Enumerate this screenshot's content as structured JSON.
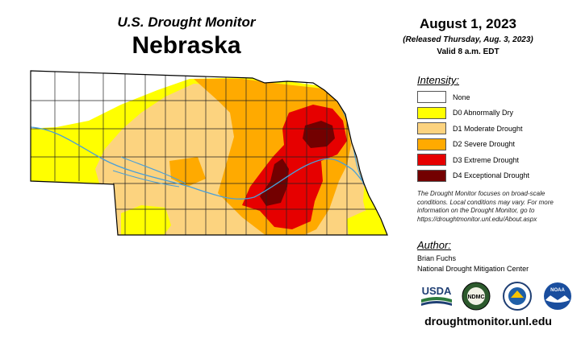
{
  "header": {
    "title": "U.S. Drought Monitor",
    "state": "Nebraska",
    "date": "August 1, 2023",
    "released": "(Released Thursday, Aug. 3, 2023)",
    "valid": "Valid 8 a.m. EDT"
  },
  "legend": {
    "heading": "Intensity:",
    "items": [
      {
        "label": "None",
        "color": "#ffffff"
      },
      {
        "label": "D0 Abnormally Dry",
        "color": "#ffff00"
      },
      {
        "label": "D1 Moderate Drought",
        "color": "#fcd37f"
      },
      {
        "label": "D2 Severe Drought",
        "color": "#ffaa00"
      },
      {
        "label": "D3 Extreme Drought",
        "color": "#e60000"
      },
      {
        "label": "D4 Exceptional Drought",
        "color": "#730000"
      }
    ]
  },
  "note": "The Drought Monitor focuses on broad-scale conditions. Local conditions may vary. For more information on the Drought Monitor, go to https://droughtmonitor.unl.edu/About.aspx",
  "author": {
    "heading": "Author:",
    "name": "Brian Fuchs",
    "organization": "National Drought Mitigation Center"
  },
  "logos": {
    "usda": "USDA",
    "ndmc": "NDMC",
    "noaa": "NOAA"
  },
  "url": "droughtmonitor.unl.edu",
  "map": {
    "river_color": "#4a9fd8",
    "county_line_color": "#222222"
  }
}
